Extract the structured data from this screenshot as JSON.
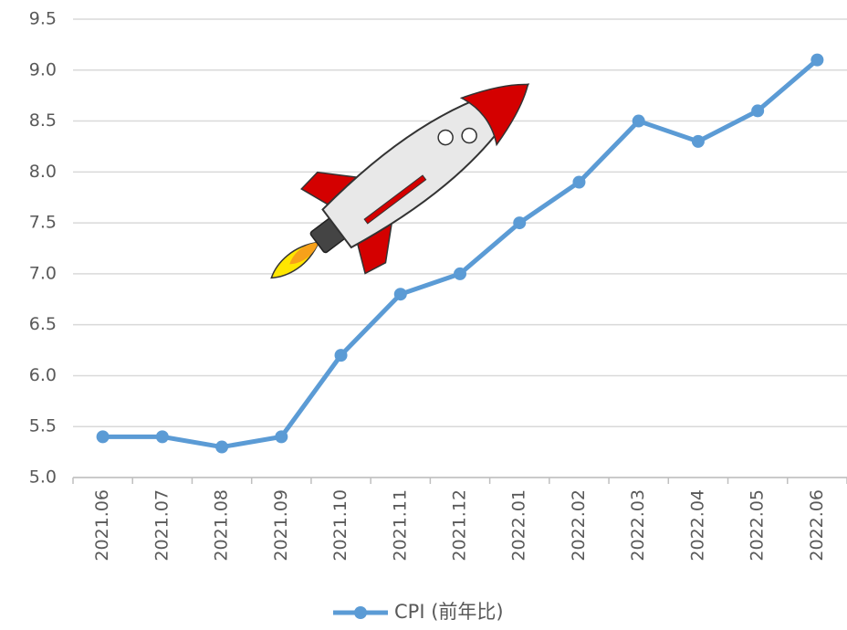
{
  "chart_data": {
    "type": "line",
    "categories": [
      "2021.06",
      "2021.07",
      "2021.08",
      "2021.09",
      "2021.10",
      "2021.11",
      "2021.12",
      "2022.01",
      "2022.02",
      "2022.03",
      "2022.04",
      "2022.05",
      "2022.06"
    ],
    "series": [
      {
        "name": "CPI (前年比)",
        "color": "#5b9bd5",
        "values": [
          5.4,
          5.4,
          5.3,
          5.4,
          6.2,
          6.8,
          7.0,
          7.5,
          7.9,
          8.5,
          8.3,
          8.6,
          9.1
        ]
      }
    ],
    "ylim": [
      5,
      9.5
    ],
    "yticks": [
      {
        "value": 5,
        "label": "5.0"
      },
      5.5,
      {
        "value": 6,
        "label": "6.0"
      },
      6.5,
      {
        "value": 7,
        "label": "7.0"
      },
      7.5,
      {
        "value": 8,
        "label": "8.0"
      },
      8.5,
      {
        "value": 9,
        "label": "9.0"
      },
      9.5
    ],
    "grid": true,
    "legend": "bottom"
  }
}
